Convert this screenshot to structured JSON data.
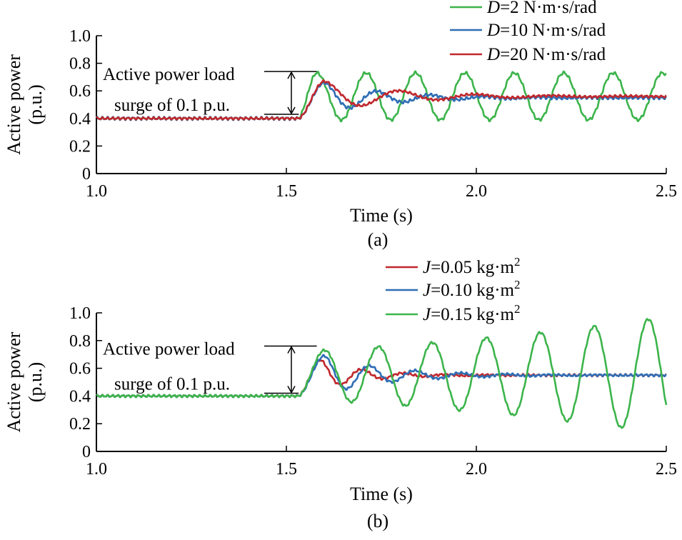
{
  "colors": {
    "green": "#3cb44b",
    "blue": "#2f6eb5",
    "red": "#c0282d",
    "axis": "#000000"
  },
  "chart_data": [
    {
      "type": "line",
      "panel_label": "(a)",
      "xlabel": "Time (s)",
      "ylabel_line1": "Active power",
      "ylabel_line2": "(p.u.)",
      "xlim": [
        1.0,
        2.5
      ],
      "ylim": [
        0,
        1.0
      ],
      "xticks": [
        1.0,
        1.5,
        2.0,
        2.5
      ],
      "xtick_labels": [
        "1.0",
        "1.5",
        "2.0",
        "2.5"
      ],
      "yticks": [
        0,
        0.2,
        0.4,
        0.6,
        0.8,
        1.0
      ],
      "ytick_labels": [
        "0",
        "0.2",
        "0.4",
        "0.6",
        "0.8",
        "1.0"
      ],
      "grid": false,
      "legend_position": "top-right",
      "annotation": {
        "line1": "Active power load",
        "line2": "surge of 0.1 p.u.",
        "y_low": 0.43,
        "y_high": 0.74,
        "x_from": 1.51,
        "x_to": 1.58
      },
      "series": [
        {
          "legend_var": "D",
          "legend_rest": "=2 N·m·s/rad",
          "color_key": "green",
          "base": 0.4,
          "final": 0.56,
          "step_time": 1.53,
          "rise_end": 1.58,
          "peak": 0.73,
          "osc_amp": 0.14,
          "osc_period": 0.13,
          "osc_decay": 0.0,
          "ripple": 0.008
        },
        {
          "legend_var": "D",
          "legend_rest": "=10 N·m·s/rad",
          "color_key": "blue",
          "base": 0.4,
          "final": 0.55,
          "step_time": 1.53,
          "rise_end": 1.6,
          "peak": 0.66,
          "osc_amp": 0.11,
          "osc_period": 0.14,
          "osc_decay": 6.0,
          "ripple": 0.008
        },
        {
          "legend_var": "D",
          "legend_rest": "=20 N·m·s/rad",
          "color_key": "red",
          "base": 0.4,
          "final": 0.56,
          "step_time": 1.53,
          "rise_end": 1.6,
          "peak": 0.67,
          "osc_amp": 0.12,
          "osc_period": 0.2,
          "osc_decay": 5.0,
          "ripple": 0.006
        }
      ]
    },
    {
      "type": "line",
      "panel_label": "(b)",
      "xlabel": "Time (s)",
      "ylabel_line1": "Active power",
      "ylabel_line2": "(p.u.)",
      "xlim": [
        1.0,
        2.5
      ],
      "ylim": [
        0,
        1.0
      ],
      "xticks": [
        1.0,
        1.5,
        2.0,
        2.5
      ],
      "xtick_labels": [
        "1.0",
        "1.5",
        "2.0",
        "2.5"
      ],
      "yticks": [
        0,
        0.2,
        0.4,
        0.6,
        0.8,
        1.0
      ],
      "ytick_labels": [
        "0",
        "0.2",
        "0.4",
        "0.6",
        "0.8",
        "1.0"
      ],
      "grid": false,
      "legend_position": "top-right",
      "annotation": {
        "line1": "Active power load",
        "line2": "surge of 0.1 p.u.",
        "y_low": 0.42,
        "y_high": 0.76,
        "x_from": 1.51,
        "x_to": 1.58
      },
      "series": [
        {
          "legend_var": "J",
          "legend_rest": "=0.05 kg·m",
          "legend_sup": "2",
          "color_key": "red",
          "base": 0.4,
          "final": 0.55,
          "step_time": 1.53,
          "rise_end": 1.59,
          "peak": 0.66,
          "osc_amp": 0.11,
          "osc_period": 0.11,
          "osc_decay": 9.0,
          "ripple": 0.006
        },
        {
          "legend_var": "J",
          "legend_rest": "=0.10 kg·m",
          "legend_sup": "2",
          "color_key": "blue",
          "base": 0.4,
          "final": 0.55,
          "step_time": 1.53,
          "rise_end": 1.6,
          "peak": 0.69,
          "osc_amp": 0.14,
          "osc_period": 0.12,
          "osc_decay": 6.0,
          "ripple": 0.006
        },
        {
          "legend_var": "J",
          "legend_rest": "=0.15 kg·m",
          "legend_sup": "2",
          "color_key": "green",
          "base": 0.4,
          "final": 0.55,
          "step_time": 1.53,
          "rise_end": 1.6,
          "peak": 0.73,
          "osc_amp": 0.17,
          "osc_period": 0.142,
          "osc_decay": -0.95,
          "ripple": 0.006
        }
      ]
    }
  ]
}
